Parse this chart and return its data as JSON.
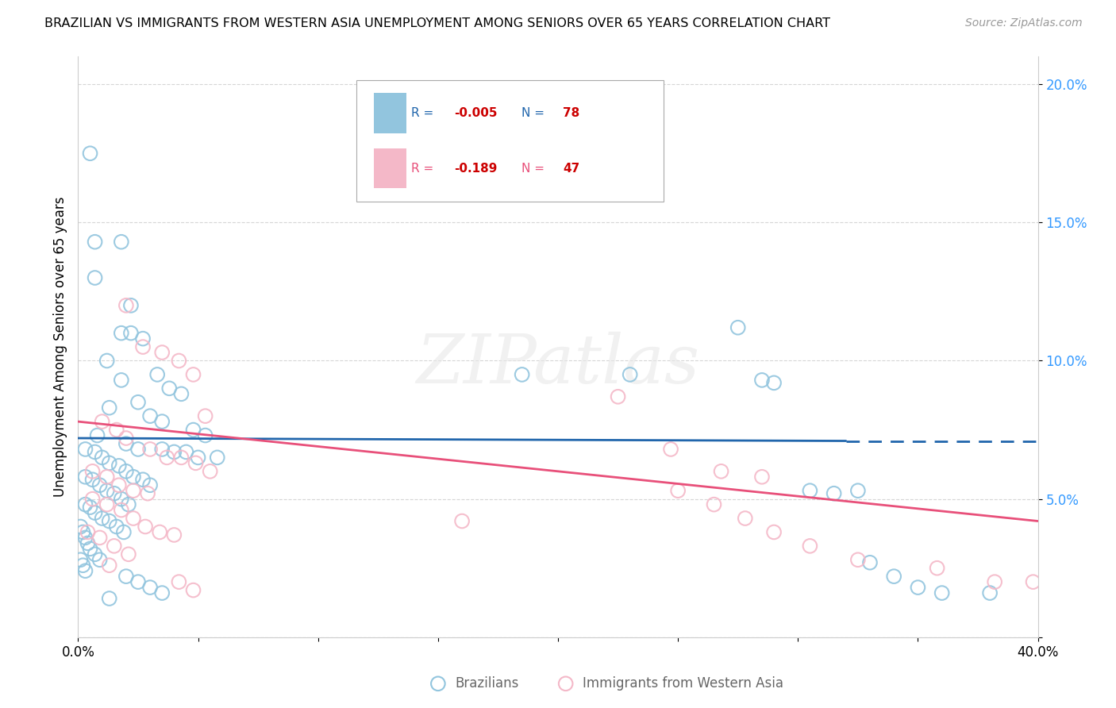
{
  "title": "BRAZILIAN VS IMMIGRANTS FROM WESTERN ASIA UNEMPLOYMENT AMONG SENIORS OVER 65 YEARS CORRELATION CHART",
  "source": "Source: ZipAtlas.com",
  "ylabel": "Unemployment Among Seniors over 65 years",
  "xlim": [
    0.0,
    0.4
  ],
  "ylim": [
    0.0,
    0.21
  ],
  "yticks": [
    0.0,
    0.05,
    0.1,
    0.15,
    0.2
  ],
  "ytick_labels": [
    "",
    "5.0%",
    "10.0%",
    "15.0%",
    "20.0%"
  ],
  "xticks": [
    0.0,
    0.05,
    0.1,
    0.15,
    0.2,
    0.25,
    0.3,
    0.35,
    0.4
  ],
  "xtick_labels": [
    "0.0%",
    "",
    "",
    "",
    "",
    "",
    "",
    "",
    "40.0%"
  ],
  "color_blue": "#92c5de",
  "color_pink": "#f4b8c8",
  "color_line_blue": "#2166ac",
  "color_line_pink": "#e8507a",
  "blue_r": "-0.005",
  "blue_n": "78",
  "pink_r": "-0.189",
  "pink_n": "47",
  "watermark": "ZIPatlas",
  "legend_label_blue": "Brazilians",
  "legend_label_pink": "Immigrants from Western Asia",
  "blue_trend_x": [
    0.0,
    0.32,
    0.4
  ],
  "blue_trend_y": [
    0.072,
    0.071,
    0.071
  ],
  "blue_trend_solid_end": 0.32,
  "pink_trend_x": [
    0.0,
    0.4
  ],
  "pink_trend_y": [
    0.078,
    0.042
  ],
  "blue_points": [
    [
      0.005,
      0.175
    ],
    [
      0.007,
      0.143
    ],
    [
      0.018,
      0.143
    ],
    [
      0.007,
      0.13
    ],
    [
      0.022,
      0.12
    ],
    [
      0.018,
      0.11
    ],
    [
      0.027,
      0.108
    ],
    [
      0.012,
      0.1
    ],
    [
      0.033,
      0.095
    ],
    [
      0.018,
      0.093
    ],
    [
      0.038,
      0.09
    ],
    [
      0.043,
      0.088
    ],
    [
      0.025,
      0.085
    ],
    [
      0.013,
      0.083
    ],
    [
      0.03,
      0.08
    ],
    [
      0.035,
      0.078
    ],
    [
      0.048,
      0.075
    ],
    [
      0.053,
      0.073
    ],
    [
      0.008,
      0.073
    ],
    [
      0.02,
      0.07
    ],
    [
      0.025,
      0.068
    ],
    [
      0.035,
      0.068
    ],
    [
      0.04,
      0.067
    ],
    [
      0.045,
      0.067
    ],
    [
      0.05,
      0.065
    ],
    [
      0.058,
      0.065
    ],
    [
      0.003,
      0.068
    ],
    [
      0.007,
      0.067
    ],
    [
      0.01,
      0.065
    ],
    [
      0.013,
      0.063
    ],
    [
      0.017,
      0.062
    ],
    [
      0.02,
      0.06
    ],
    [
      0.023,
      0.058
    ],
    [
      0.027,
      0.057
    ],
    [
      0.03,
      0.055
    ],
    [
      0.003,
      0.058
    ],
    [
      0.006,
      0.057
    ],
    [
      0.009,
      0.055
    ],
    [
      0.012,
      0.053
    ],
    [
      0.015,
      0.052
    ],
    [
      0.018,
      0.05
    ],
    [
      0.021,
      0.048
    ],
    [
      0.003,
      0.048
    ],
    [
      0.005,
      0.047
    ],
    [
      0.007,
      0.045
    ],
    [
      0.01,
      0.043
    ],
    [
      0.013,
      0.042
    ],
    [
      0.016,
      0.04
    ],
    [
      0.019,
      0.038
    ],
    [
      0.001,
      0.04
    ],
    [
      0.002,
      0.038
    ],
    [
      0.003,
      0.036
    ],
    [
      0.004,
      0.034
    ],
    [
      0.005,
      0.032
    ],
    [
      0.007,
      0.03
    ],
    [
      0.009,
      0.028
    ],
    [
      0.001,
      0.028
    ],
    [
      0.002,
      0.026
    ],
    [
      0.003,
      0.024
    ],
    [
      0.02,
      0.022
    ],
    [
      0.025,
      0.02
    ],
    [
      0.03,
      0.018
    ],
    [
      0.035,
      0.016
    ],
    [
      0.013,
      0.014
    ],
    [
      0.022,
      0.11
    ],
    [
      0.185,
      0.095
    ],
    [
      0.23,
      0.095
    ],
    [
      0.275,
      0.112
    ],
    [
      0.285,
      0.093
    ],
    [
      0.29,
      0.092
    ],
    [
      0.305,
      0.053
    ],
    [
      0.315,
      0.052
    ],
    [
      0.325,
      0.053
    ],
    [
      0.33,
      0.027
    ],
    [
      0.34,
      0.022
    ],
    [
      0.35,
      0.018
    ],
    [
      0.36,
      0.016
    ],
    [
      0.38,
      0.016
    ]
  ],
  "pink_points": [
    [
      0.02,
      0.12
    ],
    [
      0.027,
      0.105
    ],
    [
      0.035,
      0.103
    ],
    [
      0.042,
      0.1
    ],
    [
      0.048,
      0.095
    ],
    [
      0.053,
      0.08
    ],
    [
      0.01,
      0.078
    ],
    [
      0.016,
      0.075
    ],
    [
      0.02,
      0.072
    ],
    [
      0.03,
      0.068
    ],
    [
      0.037,
      0.065
    ],
    [
      0.043,
      0.065
    ],
    [
      0.049,
      0.063
    ],
    [
      0.055,
      0.06
    ],
    [
      0.006,
      0.06
    ],
    [
      0.012,
      0.058
    ],
    [
      0.017,
      0.055
    ],
    [
      0.023,
      0.053
    ],
    [
      0.029,
      0.052
    ],
    [
      0.006,
      0.05
    ],
    [
      0.012,
      0.048
    ],
    [
      0.018,
      0.046
    ],
    [
      0.023,
      0.043
    ],
    [
      0.028,
      0.04
    ],
    [
      0.034,
      0.038
    ],
    [
      0.04,
      0.037
    ],
    [
      0.004,
      0.038
    ],
    [
      0.009,
      0.036
    ],
    [
      0.015,
      0.033
    ],
    [
      0.021,
      0.03
    ],
    [
      0.013,
      0.026
    ],
    [
      0.042,
      0.02
    ],
    [
      0.048,
      0.017
    ],
    [
      0.16,
      0.042
    ],
    [
      0.225,
      0.087
    ],
    [
      0.247,
      0.068
    ],
    [
      0.268,
      0.06
    ],
    [
      0.285,
      0.058
    ],
    [
      0.25,
      0.053
    ],
    [
      0.265,
      0.048
    ],
    [
      0.278,
      0.043
    ],
    [
      0.29,
      0.038
    ],
    [
      0.305,
      0.033
    ],
    [
      0.325,
      0.028
    ],
    [
      0.358,
      0.025
    ],
    [
      0.382,
      0.02
    ],
    [
      0.398,
      0.02
    ]
  ]
}
